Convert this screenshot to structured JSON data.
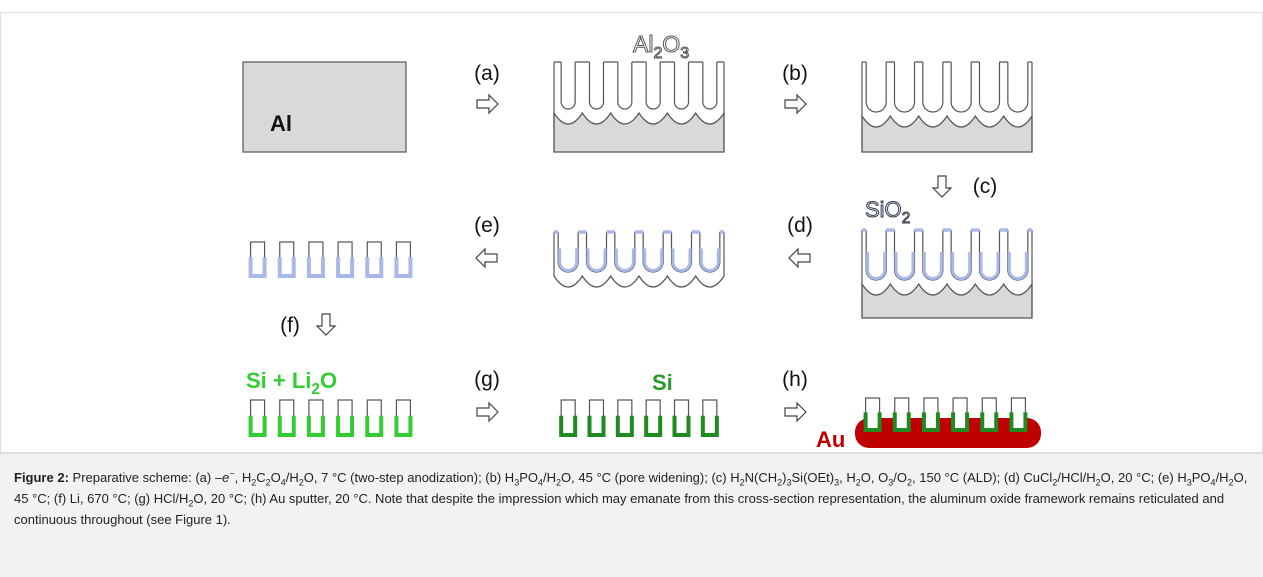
{
  "figure": {
    "labels": {
      "al": "Al",
      "al2o3": [
        "Al",
        {
          "sub": "2"
        },
        "O",
        {
          "sub": "3"
        }
      ],
      "sio2": [
        "SiO",
        {
          "sub": "2"
        }
      ],
      "si_li2o": [
        "Si + Li",
        {
          "sub": "2"
        },
        "O"
      ],
      "si": "Si",
      "au": "Au"
    },
    "steps": [
      "(a)",
      "(b)",
      "(c)",
      "(d)",
      "(e)",
      "(f)",
      "(g)",
      "(h)"
    ]
  },
  "caption": {
    "label": "Figure 2:",
    "runs": [
      " Preparative scheme: (a) –",
      {
        "i": "e"
      },
      {
        "sup": "−"
      },
      ", H",
      {
        "sub": "2"
      },
      "C",
      {
        "sub": "2"
      },
      "O",
      {
        "sub": "4"
      },
      "/H",
      {
        "sub": "2"
      },
      "O, 7 °C (two-step anodization); (b) H",
      {
        "sub": "3"
      },
      "PO",
      {
        "sub": "4"
      },
      "/H",
      {
        "sub": "2"
      },
      "O, 45 °C (pore widening); (c) H",
      {
        "sub": "2"
      },
      "N(CH",
      {
        "sub": "2"
      },
      ")",
      {
        "sub": "3"
      },
      "Si(OEt)",
      {
        "sub": "3"
      },
      ", H",
      {
        "sub": "2"
      },
      "O, O",
      {
        "sub": "3"
      },
      "/O",
      {
        "sub": "2"
      },
      ", 150 °C (ALD); (d) CuCl",
      {
        "sub": "2"
      },
      "/HCl/H",
      {
        "sub": "2"
      },
      "O, 20 °C; (e) H",
      {
        "sub": "3"
      },
      "PO",
      {
        "sub": "4"
      },
      "/H",
      {
        "sub": "2"
      },
      "O, 45 °C; (f) Li, 670 °C; (g) HCl/H",
      {
        "sub": "2"
      },
      "O, 20 °C; (h) Au sputter, 20 °C. Note that despite the impression which may emanate from this cross-section representation, the aluminum oxide framework remains reticulated and continuous throughout (see Figure 1)."
    ]
  }
}
